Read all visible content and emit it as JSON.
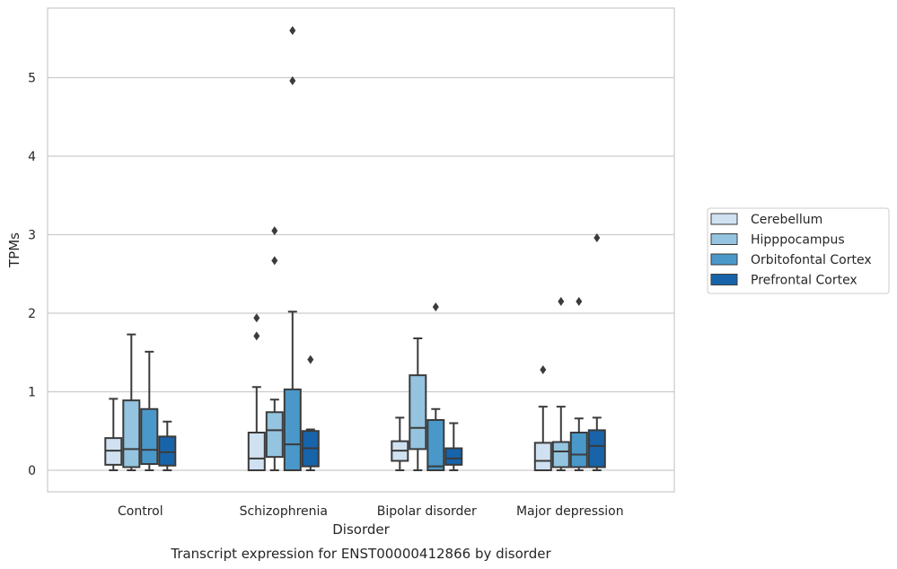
{
  "chart_data": {
    "type": "box",
    "title": "Transcript expression for ENST00000412866 by disorder",
    "xlabel": "Disorder",
    "ylabel": "TPMs",
    "ylim": [
      -0.27,
      5.9
    ],
    "yticks": [
      0,
      1,
      2,
      3,
      4,
      5
    ],
    "categories": [
      "Control",
      "Schizophrenia",
      "Bipolar disorder",
      "Major depression"
    ],
    "grid": "horizontal",
    "legend_position": "right",
    "series": [
      {
        "name": "Cerebellum",
        "color": "#d0e1f2",
        "boxes": [
          {
            "whislo": 0.0,
            "q1": 0.07,
            "med": 0.25,
            "q3": 0.41,
            "whishi": 0.91,
            "fliers": []
          },
          {
            "whislo": 0.0,
            "q1": 0.0,
            "med": 0.15,
            "q3": 0.48,
            "whishi": 1.06,
            "fliers": [
              1.94,
              1.71
            ]
          },
          {
            "whislo": 0.0,
            "q1": 0.12,
            "med": 0.25,
            "q3": 0.37,
            "whishi": 0.67,
            "fliers": []
          },
          {
            "whislo": 0.0,
            "q1": 0.0,
            "med": 0.12,
            "q3": 0.35,
            "whishi": 0.81,
            "fliers": [
              1.28
            ]
          }
        ]
      },
      {
        "name": "Hipppocampus",
        "color": "#94c4df",
        "boxes": [
          {
            "whislo": 0.0,
            "q1": 0.04,
            "med": 0.27,
            "q3": 0.89,
            "whishi": 1.73,
            "fliers": []
          },
          {
            "whislo": 0.0,
            "q1": 0.17,
            "med": 0.51,
            "q3": 0.74,
            "whishi": 0.9,
            "fliers": [
              3.05,
              2.67
            ]
          },
          {
            "whislo": 0.0,
            "q1": 0.27,
            "med": 0.54,
            "q3": 1.21,
            "whishi": 1.68,
            "fliers": []
          },
          {
            "whislo": 0.0,
            "q1": 0.04,
            "med": 0.24,
            "q3": 0.36,
            "whishi": 0.81,
            "fliers": [
              2.15
            ]
          }
        ]
      },
      {
        "name": "Orbitofontal Cortex",
        "color": "#4a98c9",
        "boxes": [
          {
            "whislo": 0.0,
            "q1": 0.08,
            "med": 0.26,
            "q3": 0.78,
            "whishi": 1.51,
            "fliers": []
          },
          {
            "whislo": 0.0,
            "q1": 0.0,
            "med": 0.33,
            "q3": 1.03,
            "whishi": 2.02,
            "fliers": [
              5.6,
              4.96
            ]
          },
          {
            "whislo": 0.0,
            "q1": 0.0,
            "med": 0.05,
            "q3": 0.64,
            "whishi": 0.78,
            "fliers": [
              2.08
            ]
          },
          {
            "whislo": 0.0,
            "q1": 0.04,
            "med": 0.2,
            "q3": 0.48,
            "whishi": 0.66,
            "fliers": [
              2.15
            ]
          }
        ]
      },
      {
        "name": "Prefrontal Cortex",
        "color": "#1764ab",
        "boxes": [
          {
            "whislo": 0.0,
            "q1": 0.06,
            "med": 0.23,
            "q3": 0.43,
            "whishi": 0.62,
            "fliers": []
          },
          {
            "whislo": 0.0,
            "q1": 0.05,
            "med": 0.28,
            "q3": 0.5,
            "whishi": 0.52,
            "fliers": [
              1.41
            ]
          },
          {
            "whislo": 0.0,
            "q1": 0.07,
            "med": 0.15,
            "q3": 0.28,
            "whishi": 0.6,
            "fliers": []
          },
          {
            "whislo": 0.0,
            "q1": 0.04,
            "med": 0.31,
            "q3": 0.51,
            "whishi": 0.67,
            "fliers": [
              2.96
            ]
          }
        ]
      }
    ]
  }
}
